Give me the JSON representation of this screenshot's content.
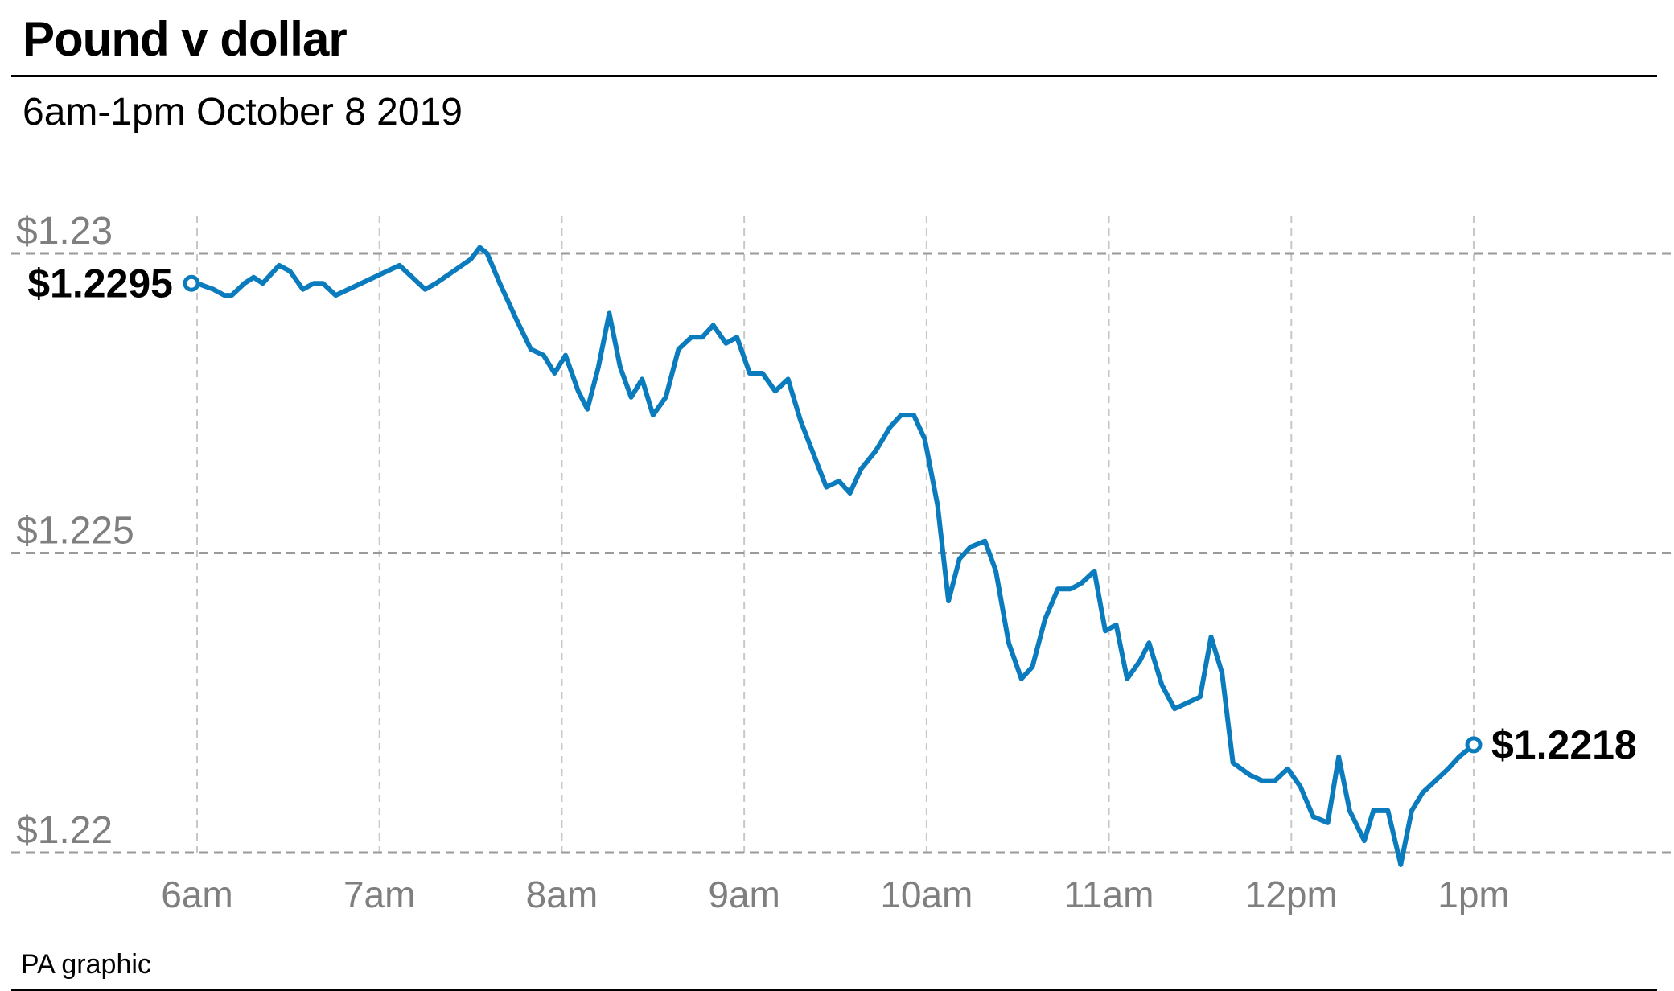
{
  "header": {
    "title": "Pound v dollar",
    "subtitle": "6am-1pm October 8 2019"
  },
  "footer": {
    "source": "PA graphic"
  },
  "colors": {
    "line": "#0a7bbd",
    "grid": "#9a9a9a",
    "axis_text": "#7f7f7f"
  },
  "chart_data": {
    "type": "line",
    "title": "Pound v dollar",
    "subtitle": "6am-1pm October 8 2019",
    "xlabel": "",
    "ylabel": "",
    "x_ticks": [
      "6am",
      "7am",
      "8am",
      "9am",
      "10am",
      "11am",
      "12pm",
      "1pm"
    ],
    "y_ticks": [
      {
        "value": 1.23,
        "label": "$1.23"
      },
      {
        "value": 1.225,
        "label": "$1.225"
      },
      {
        "value": 1.22,
        "label": "$1.22"
      }
    ],
    "xlim": [
      6,
      13
    ],
    "ylim": [
      1.22,
      1.23
    ],
    "grid": true,
    "annotations": {
      "start": {
        "x": 6.0,
        "y": 1.2295,
        "label": "$1.2295"
      },
      "end": {
        "x": 13.0,
        "y": 1.2218,
        "label": "$1.2218"
      }
    },
    "series": [
      {
        "points": [
          [
            6.0,
            1.2295
          ],
          [
            6.09,
            1.2294
          ],
          [
            6.15,
            1.2293
          ],
          [
            6.19,
            1.2293
          ],
          [
            6.26,
            1.2295
          ],
          [
            6.31,
            1.2296
          ],
          [
            6.36,
            1.2295
          ],
          [
            6.45,
            1.2298
          ],
          [
            6.51,
            1.2297
          ],
          [
            6.58,
            1.2294
          ],
          [
            6.64,
            1.2295
          ],
          [
            6.69,
            1.2295
          ],
          [
            6.76,
            1.2293
          ],
          [
            7.11,
            1.2298
          ],
          [
            7.25,
            1.2294
          ],
          [
            7.31,
            1.2295
          ],
          [
            7.5,
            1.2299
          ],
          [
            7.55,
            1.2301
          ],
          [
            7.59,
            1.23
          ],
          [
            7.66,
            1.2295
          ],
          [
            7.75,
            1.2289
          ],
          [
            7.83,
            1.2284
          ],
          [
            7.9,
            1.2283
          ],
          [
            7.96,
            1.228
          ],
          [
            8.02,
            1.2283
          ],
          [
            8.09,
            1.2277
          ],
          [
            8.14,
            1.2274
          ],
          [
            8.2,
            1.2281
          ],
          [
            8.26,
            1.229
          ],
          [
            8.32,
            1.2281
          ],
          [
            8.38,
            1.2276
          ],
          [
            8.44,
            1.2279
          ],
          [
            8.5,
            1.2273
          ],
          [
            8.57,
            1.2276
          ],
          [
            8.64,
            1.2284
          ],
          [
            8.71,
            1.2286
          ],
          [
            8.77,
            1.2286
          ],
          [
            8.83,
            1.2288
          ],
          [
            8.9,
            1.2285
          ],
          [
            8.96,
            1.2286
          ],
          [
            9.03,
            1.228
          ],
          [
            9.1,
            1.228
          ],
          [
            9.17,
            1.2277
          ],
          [
            9.24,
            1.2279
          ],
          [
            9.31,
            1.2272
          ],
          [
            9.45,
            1.2261
          ],
          [
            9.52,
            1.2262
          ],
          [
            9.58,
            1.226
          ],
          [
            9.64,
            1.2264
          ],
          [
            9.72,
            1.2267
          ],
          [
            9.8,
            1.2271
          ],
          [
            9.86,
            1.2273
          ],
          [
            9.93,
            1.2273
          ],
          [
            9.99,
            1.2269
          ],
          [
            10.06,
            1.2258
          ],
          [
            10.12,
            1.2242
          ],
          [
            10.18,
            1.2249
          ],
          [
            10.24,
            1.2251
          ],
          [
            10.32,
            1.2252
          ],
          [
            10.38,
            1.2247
          ],
          [
            10.45,
            1.2235
          ],
          [
            10.52,
            1.2229
          ],
          [
            10.58,
            1.2231
          ],
          [
            10.65,
            1.2239
          ],
          [
            10.72,
            1.2244
          ],
          [
            10.79,
            1.2244
          ],
          [
            10.85,
            1.2245
          ],
          [
            10.92,
            1.2247
          ],
          [
            10.98,
            1.2237
          ],
          [
            11.04,
            1.2238
          ],
          [
            11.1,
            1.2229
          ],
          [
            11.17,
            1.2232
          ],
          [
            11.22,
            1.2235
          ],
          [
            11.29,
            1.2228
          ],
          [
            11.36,
            1.2224
          ],
          [
            11.5,
            1.2226
          ],
          [
            11.56,
            1.2236
          ],
          [
            11.62,
            1.223
          ],
          [
            11.68,
            1.2215
          ],
          [
            11.77,
            1.2213
          ],
          [
            11.84,
            1.2212
          ],
          [
            11.91,
            1.2212
          ],
          [
            11.98,
            1.2214
          ],
          [
            12.05,
            1.2211
          ],
          [
            12.12,
            1.2206
          ],
          [
            12.2,
            1.2205
          ],
          [
            12.26,
            1.2216
          ],
          [
            12.32,
            1.2207
          ],
          [
            12.4,
            1.2202
          ],
          [
            12.45,
            1.2207
          ],
          [
            12.53,
            1.2207
          ],
          [
            12.6,
            1.2198
          ],
          [
            12.66,
            1.2207
          ],
          [
            12.72,
            1.221
          ],
          [
            12.79,
            1.2212
          ],
          [
            12.86,
            1.2214
          ],
          [
            12.92,
            1.2216
          ],
          [
            13.0,
            1.2218
          ]
        ]
      }
    ]
  }
}
